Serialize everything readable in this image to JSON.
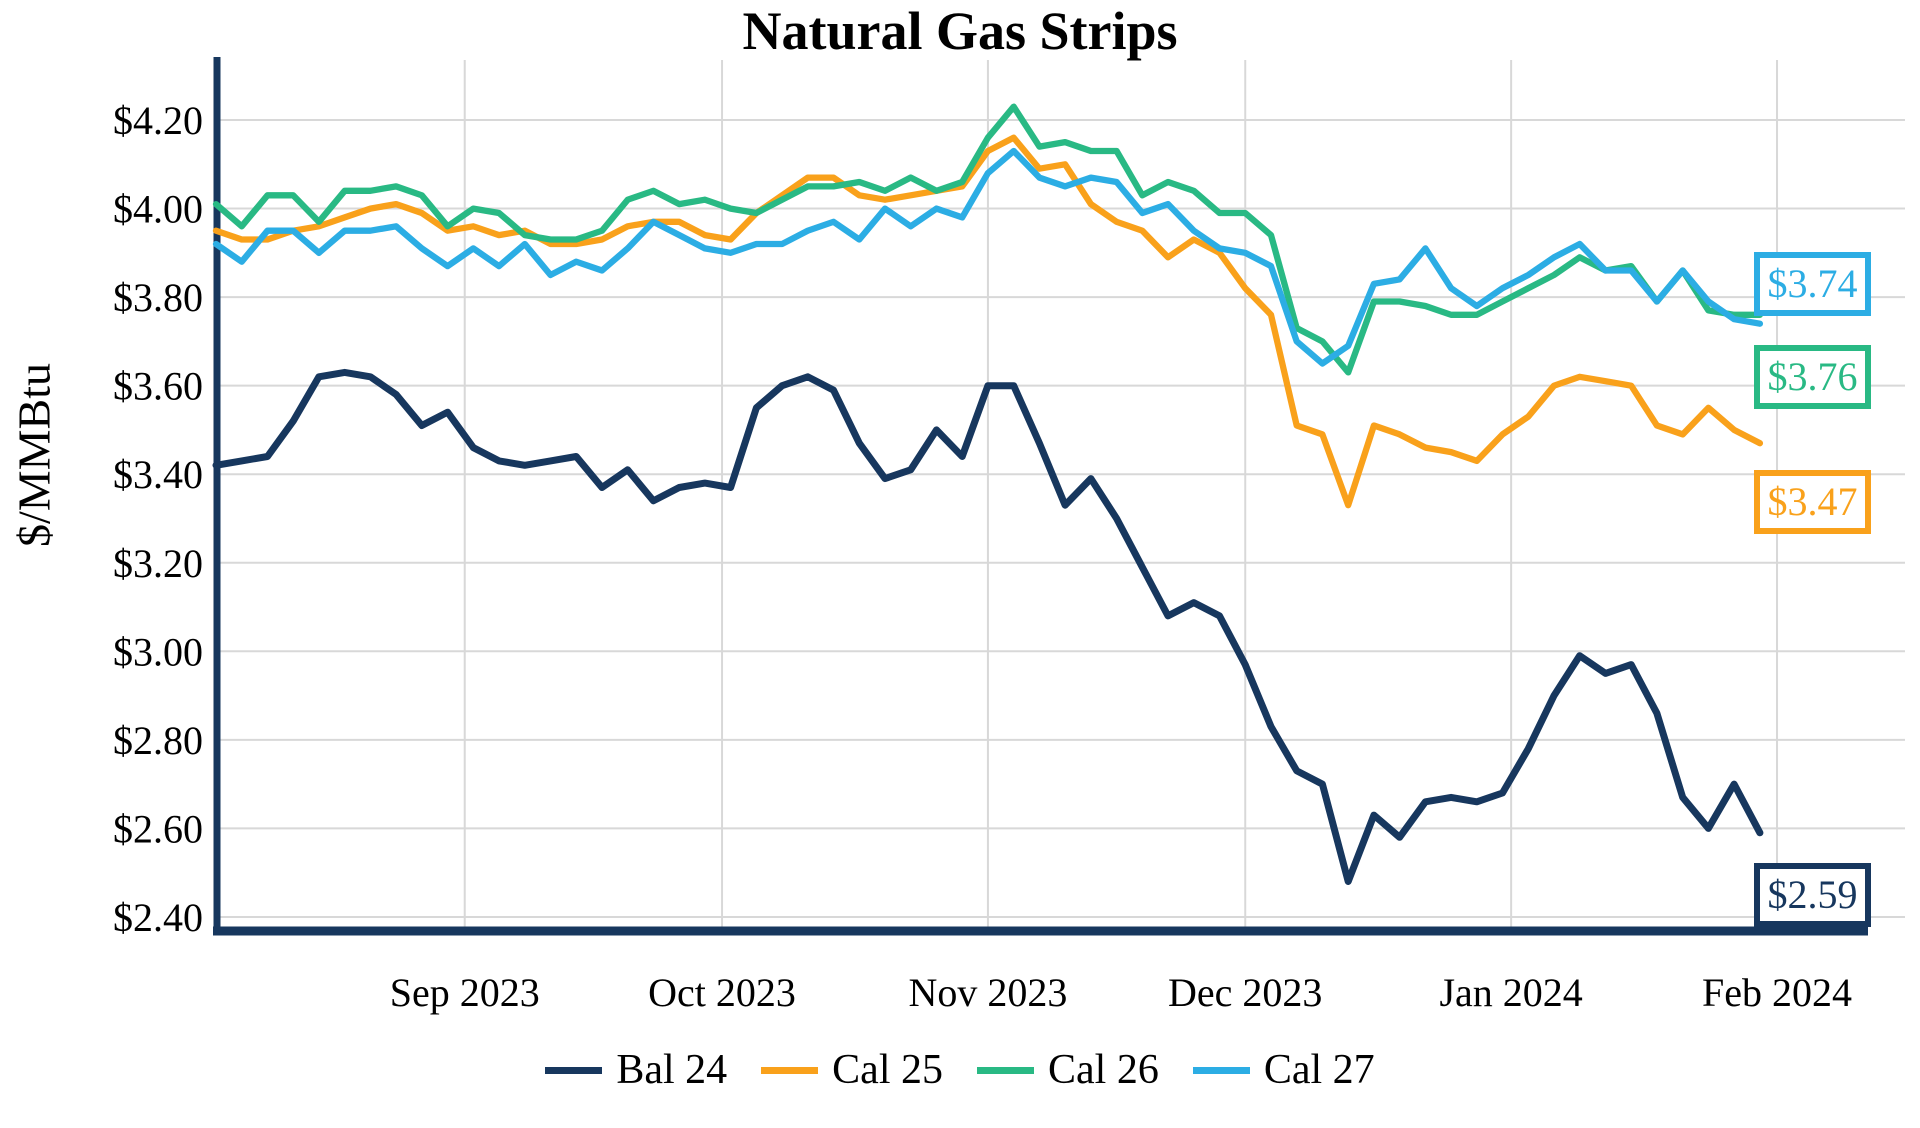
{
  "title": "Natural Gas Strips",
  "y_axis": {
    "title": "$/MMBtu"
  },
  "chart_data": {
    "type": "line",
    "title": "Natural Gas Strips",
    "ylabel": "$/MMBtu",
    "xlabel": "",
    "grid": true,
    "legend_position": "bottom",
    "ylim": [
      2.37,
      4.34
    ],
    "x_unit": "day offset from first plotted trading day (early Aug 2023); month ticks mark the 1st of each month",
    "x": [
      0,
      3,
      6,
      9,
      12,
      15,
      18,
      21,
      24,
      27,
      30,
      33,
      36,
      39,
      42,
      45,
      48,
      51,
      54,
      57,
      60,
      63,
      66,
      69,
      72,
      75,
      78,
      81,
      84,
      87,
      90,
      93,
      96,
      99,
      102,
      105,
      108,
      111,
      114,
      117,
      120,
      123,
      126,
      129,
      132,
      135,
      138,
      141,
      144,
      147,
      150,
      153,
      156,
      159,
      162,
      165,
      168,
      171,
      174,
      177,
      180
    ],
    "x_ticks": [
      {
        "day": 29,
        "label": "Sep 2023"
      },
      {
        "day": 59,
        "label": "Oct 2023"
      },
      {
        "day": 90,
        "label": "Nov 2023"
      },
      {
        "day": 120,
        "label": "Dec 2023"
      },
      {
        "day": 151,
        "label": "Jan 2024"
      },
      {
        "day": 182,
        "label": "Feb 2024"
      }
    ],
    "y_ticks": [
      {
        "value": 4.2,
        "label": "$4.20"
      },
      {
        "value": 4.0,
        "label": "$4.00"
      },
      {
        "value": 3.8,
        "label": "$3.80"
      },
      {
        "value": 3.6,
        "label": "$3.60"
      },
      {
        "value": 3.4,
        "label": "$3.40"
      },
      {
        "value": 3.2,
        "label": "$3.20"
      },
      {
        "value": 3.0,
        "label": "$3.00"
      },
      {
        "value": 2.8,
        "label": "$2.80"
      },
      {
        "value": 2.6,
        "label": "$2.60"
      },
      {
        "value": 2.4,
        "label": "$2.40"
      }
    ],
    "series": [
      {
        "name": "Bal 24",
        "color": "#17375E",
        "end_label": "$2.59",
        "values": [
          3.42,
          3.43,
          3.44,
          3.52,
          3.62,
          3.63,
          3.62,
          3.58,
          3.51,
          3.54,
          3.46,
          3.43,
          3.42,
          3.43,
          3.44,
          3.37,
          3.41,
          3.34,
          3.37,
          3.38,
          3.37,
          3.55,
          3.6,
          3.62,
          3.59,
          3.47,
          3.39,
          3.41,
          3.5,
          3.44,
          3.6,
          3.6,
          3.47,
          3.33,
          3.39,
          3.3,
          3.19,
          3.08,
          3.11,
          3.08,
          2.97,
          2.83,
          2.73,
          2.7,
          2.48,
          2.63,
          2.58,
          2.66,
          2.67,
          2.66,
          2.68,
          2.78,
          2.9,
          2.99,
          2.95,
          2.97,
          2.86,
          2.67,
          2.6,
          2.7,
          2.59
        ]
      },
      {
        "name": "Cal 25",
        "color": "#F9A11B",
        "end_label": "$3.47",
        "values": [
          3.95,
          3.93,
          3.93,
          3.95,
          3.96,
          3.98,
          4.0,
          4.01,
          3.99,
          3.95,
          3.96,
          3.94,
          3.95,
          3.92,
          3.92,
          3.93,
          3.96,
          3.97,
          3.97,
          3.94,
          3.93,
          3.99,
          4.03,
          4.07,
          4.07,
          4.03,
          4.02,
          4.03,
          4.04,
          4.05,
          4.13,
          4.16,
          4.09,
          4.1,
          4.01,
          3.97,
          3.95,
          3.89,
          3.93,
          3.9,
          3.82,
          3.76,
          3.51,
          3.49,
          3.33,
          3.51,
          3.49,
          3.46,
          3.45,
          3.43,
          3.49,
          3.53,
          3.6,
          3.62,
          3.61,
          3.6,
          3.51,
          3.49,
          3.55,
          3.5,
          3.47
        ]
      },
      {
        "name": "Cal 26",
        "color": "#29B984",
        "end_label": "$3.76",
        "values": [
          4.01,
          3.96,
          4.03,
          4.03,
          3.97,
          4.04,
          4.04,
          4.05,
          4.03,
          3.96,
          4.0,
          3.99,
          3.94,
          3.93,
          3.93,
          3.95,
          4.02,
          4.04,
          4.01,
          4.02,
          4.0,
          3.99,
          4.02,
          4.05,
          4.05,
          4.06,
          4.04,
          4.07,
          4.04,
          4.06,
          4.16,
          4.23,
          4.14,
          4.15,
          4.13,
          4.13,
          4.03,
          4.06,
          4.04,
          3.99,
          3.99,
          3.94,
          3.73,
          3.7,
          3.63,
          3.79,
          3.79,
          3.78,
          3.76,
          3.76,
          3.79,
          3.82,
          3.85,
          3.89,
          3.86,
          3.87,
          3.79,
          3.86,
          3.77,
          3.76,
          3.76
        ]
      },
      {
        "name": "Cal 27",
        "color": "#2CADE4",
        "end_label": "$3.74",
        "values": [
          3.92,
          3.88,
          3.95,
          3.95,
          3.9,
          3.95,
          3.95,
          3.96,
          3.91,
          3.87,
          3.91,
          3.87,
          3.92,
          3.85,
          3.88,
          3.86,
          3.91,
          3.97,
          3.94,
          3.91,
          3.9,
          3.92,
          3.92,
          3.95,
          3.97,
          3.93,
          4.0,
          3.96,
          4.0,
          3.98,
          4.08,
          4.13,
          4.07,
          4.05,
          4.07,
          4.06,
          3.99,
          4.01,
          3.95,
          3.91,
          3.9,
          3.87,
          3.7,
          3.65,
          3.69,
          3.83,
          3.84,
          3.91,
          3.82,
          3.78,
          3.82,
          3.85,
          3.89,
          3.92,
          3.86,
          3.86,
          3.79,
          3.86,
          3.79,
          3.75,
          3.74
        ]
      }
    ]
  }
}
